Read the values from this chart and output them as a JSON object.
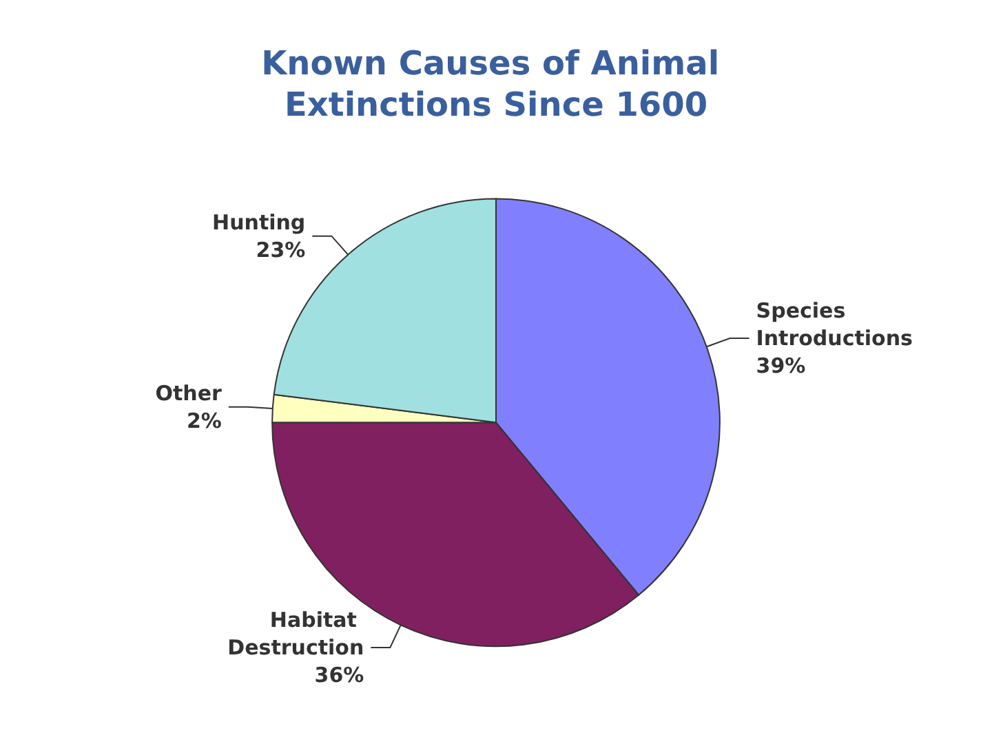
{
  "chart_data": {
    "type": "pie",
    "title": "Known Causes of Animal Extinctions Since 1600",
    "categories": [
      "Species Introductions",
      "Habitat Destruction",
      "Other",
      "Hunting"
    ],
    "values": [
      39,
      36,
      2,
      23
    ],
    "colors": [
      "#8080ff",
      "#802060",
      "#ffffc0",
      "#a0e0e0"
    ],
    "value_labels": [
      "39%",
      "36%",
      "2%",
      "23%"
    ],
    "legend": false
  }
}
